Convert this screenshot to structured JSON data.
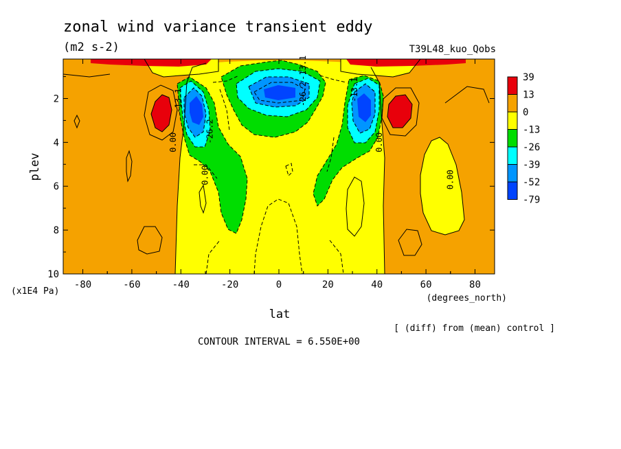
{
  "chart_data": {
    "type": "heatmap",
    "title": "zonal wind variance transient eddy",
    "units": "(m2 s-2)",
    "run_label": "T39L48_kuo_Qobs",
    "xlabel": "lat",
    "x_units": "(degrees_north)",
    "ylabel": "plev",
    "y_units": "(x1E4 Pa)",
    "x_ticks": [
      "-80",
      "-60",
      "-40",
      "-20",
      "0",
      "20",
      "40",
      "60",
      "80"
    ],
    "y_ticks": [
      "2",
      "4",
      "6",
      "8",
      "10"
    ],
    "xlim": [
      -88,
      88
    ],
    "ylim": [
      10,
      0.2
    ],
    "contour_interval_text": "CONTOUR INTERVAL = 6.550E+00",
    "diff_note": "[ (diff) from (mean) control ]",
    "contour_labels": [
      {
        "text": "0.00",
        "lat": -42,
        "plev": 4.0
      },
      {
        "text": "0.00",
        "lat": -29,
        "plev": 5.5
      },
      {
        "text": "0.00",
        "lat": 42,
        "plev": 4.0
      },
      {
        "text": "0.00",
        "lat": 71,
        "plev": 5.7
      },
      {
        "text": "-26.2",
        "lat": -27,
        "plev": 3.5
      },
      {
        "text": "-13.1",
        "lat": -40,
        "plev": 2.1
      },
      {
        "text": "-13.1",
        "lat": 11,
        "plev": 0.6
      },
      {
        "text": "-26.2",
        "lat": 11,
        "plev": 1.8
      },
      {
        "text": "-13.1",
        "lat": 32,
        "plev": 1.6
      }
    ],
    "legend": {
      "labels": [
        "39",
        "13",
        "0",
        "-13",
        "-26",
        "-39",
        "-52",
        "-79"
      ],
      "colors": [
        "#e8000b",
        "#f5a200",
        "#ffff00",
        "#00dd00",
        "#00ffff",
        "#0095ff",
        "#0044ff"
      ]
    }
  }
}
